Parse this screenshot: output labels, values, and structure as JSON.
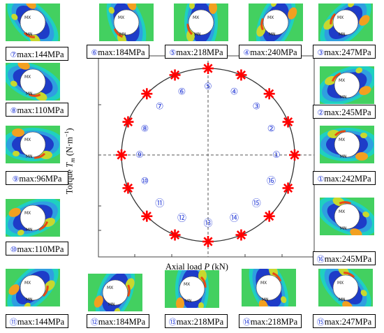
{
  "plot": {
    "xlabel": "Axial load P (kN)",
    "ylabel": "Torque T_m (N·m⁻¹)",
    "point_marker": "red-asterisk",
    "circle_color": "#333333",
    "marker_color": "#ff0000",
    "label_color": "#2a3fd8"
  },
  "positions": [
    {
      "id": 1,
      "marker": "①",
      "angle_deg": 0,
      "max_stress": "max:242MPa"
    },
    {
      "id": 2,
      "marker": "②",
      "angle_deg": 22.5,
      "max_stress": "max:245MPa"
    },
    {
      "id": 3,
      "marker": "③",
      "angle_deg": 45,
      "max_stress": "max:247MPa"
    },
    {
      "id": 4,
      "marker": "④",
      "angle_deg": 67.5,
      "max_stress": "max:240MPa"
    },
    {
      "id": 5,
      "marker": "⑤",
      "angle_deg": 90,
      "max_stress": "max:218MPa"
    },
    {
      "id": 6,
      "marker": "⑥",
      "angle_deg": 112.5,
      "max_stress": "max:184MPa"
    },
    {
      "id": 7,
      "marker": "⑦",
      "angle_deg": 135,
      "max_stress": "max:144MPa"
    },
    {
      "id": 8,
      "marker": "⑧",
      "angle_deg": 157.5,
      "max_stress": "max:110MPa"
    },
    {
      "id": 9,
      "marker": "⑨",
      "angle_deg": 180,
      "max_stress": "max:96MPa"
    },
    {
      "id": 10,
      "marker": "⑩",
      "angle_deg": 202.5,
      "max_stress": "max:110MPa"
    },
    {
      "id": 11,
      "marker": "⑪",
      "angle_deg": 225,
      "max_stress": "max:144MPa"
    },
    {
      "id": 12,
      "marker": "⑫",
      "angle_deg": 247.5,
      "max_stress": "max:184MPa"
    },
    {
      "id": 13,
      "marker": "⑬",
      "angle_deg": 270,
      "max_stress": "max:218MPa"
    },
    {
      "id": 14,
      "marker": "⑭",
      "angle_deg": 292.5,
      "max_stress": "max:218MPa"
    },
    {
      "id": 15,
      "marker": "⑮",
      "angle_deg": 315,
      "max_stress": "max:247MPa"
    },
    {
      "id": 16,
      "marker": "⑯",
      "angle_deg": 337.5,
      "max_stress": "max:245MPa"
    }
  ],
  "contour_labels": {
    "max": "MX",
    "min": "MN"
  },
  "contour_colors": [
    "#1e3cc8",
    "#2f9fe0",
    "#1fd0c0",
    "#43d060",
    "#c8d82e",
    "#f2a020",
    "#e84a14"
  ]
}
